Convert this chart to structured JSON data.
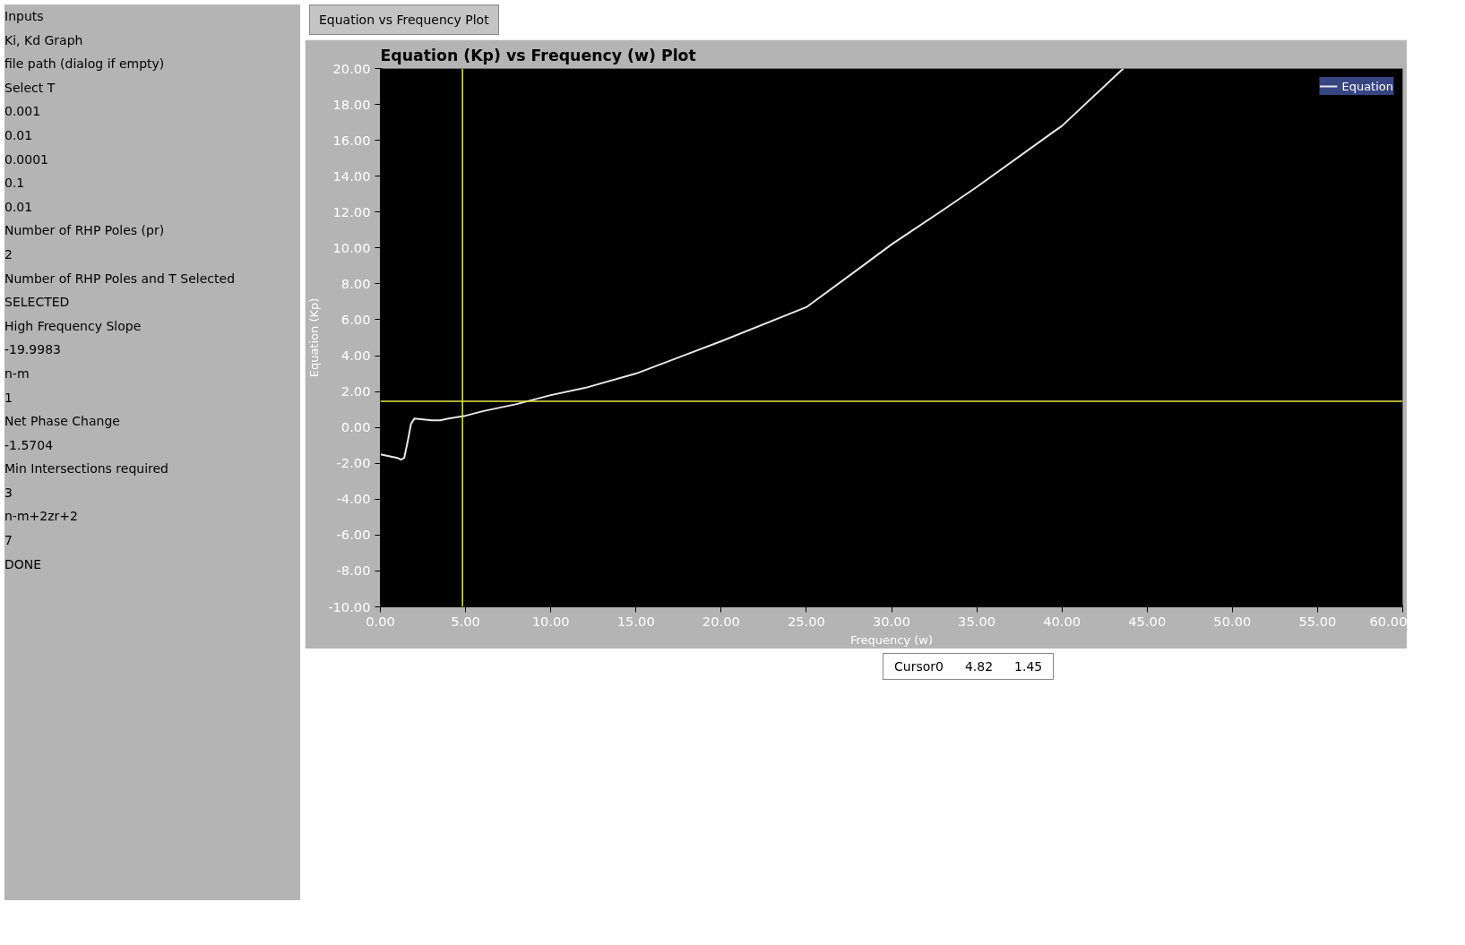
{
  "chart_data": {
    "type": "line",
    "title": "Equation (Kp) vs Frequency (w)  Plot",
    "subtitle": "Equation vs Frequency Plot",
    "xlabel": "Frequency (w)",
    "ylabel": "Equation (Kp)",
    "x": [
      0,
      0.5,
      1,
      1.2,
      1.4,
      1.6,
      1.8,
      2,
      2.5,
      3,
      3.5,
      4,
      5,
      6,
      8,
      10,
      12,
      15,
      20,
      25,
      28.3,
      30,
      33,
      35,
      39.4,
      40,
      43.6
    ],
    "series": [
      {
        "name": "Equation",
        "color": "#e8e8e8",
        "values": [
          -1.5,
          -1.6,
          -1.7,
          -1.8,
          -1.7,
          -0.8,
          0.2,
          0.5,
          0.45,
          0.4,
          0.4,
          0.5,
          0.65,
          0.9,
          1.3,
          1.8,
          2.2,
          3.0,
          4.8,
          6.7,
          9.0,
          10.2,
          12.1,
          13.4,
          16.4,
          16.8,
          20
        ]
      }
    ],
    "xlim": [
      0,
      60
    ],
    "ylim": [
      -10,
      20
    ],
    "xticks": [
      {
        "value": 0,
        "label": "0.00"
      },
      {
        "value": 5,
        "label": "5.00"
      },
      {
        "value": 10,
        "label": "10.00"
      },
      {
        "value": 15,
        "label": "15.00"
      },
      {
        "value": 20,
        "label": "20.00"
      },
      {
        "value": 25,
        "label": "25.00"
      },
      {
        "value": 30,
        "label": "30.00"
      },
      {
        "value": 35,
        "label": "35.00"
      },
      {
        "value": 40,
        "label": "40.00"
      },
      {
        "value": 45,
        "label": "45.00"
      },
      {
        "value": 50,
        "label": "50.00"
      },
      {
        "value": 55,
        "label": "55.00"
      },
      {
        "value": 60,
        "label": "60.00"
      }
    ],
    "yticks": [
      {
        "value": -10,
        "label": "-10.00"
      },
      {
        "value": -8,
        "label": "-8.00"
      },
      {
        "value": -6,
        "label": "-6.00"
      },
      {
        "value": -4,
        "label": "-4.00"
      },
      {
        "value": -2,
        "label": "-2.00"
      },
      {
        "value": 0,
        "label": "0.00"
      },
      {
        "value": 2,
        "label": "2.00"
      },
      {
        "value": 4,
        "label": "4.00"
      },
      {
        "value": 6,
        "label": "6.00"
      },
      {
        "value": 8,
        "label": "8.00"
      },
      {
        "value": 10,
        "label": "10.00"
      },
      {
        "value": 12,
        "label": "12.00"
      },
      {
        "value": 14,
        "label": "14.00"
      },
      {
        "value": 16,
        "label": "16.00"
      },
      {
        "value": 18,
        "label": "18.00"
      },
      {
        "value": 20,
        "label": "20.00"
      }
    ],
    "ref_lines": [
      {
        "axis": "x",
        "value": 4.82,
        "color": "#e6e64a"
      },
      {
        "axis": "y",
        "value": 1.45,
        "color": "#e6e64a"
      }
    ],
    "annotations": [
      "Cursor0",
      "4.82",
      "1.45",
      "Inputs",
      "Ki, Kd Graph",
      "file path (dialog if empty)",
      "Select T",
      "0.001",
      "0.01",
      "0.0001",
      "0.1",
      "0.01",
      "Number of RHP Poles (pr)",
      "2",
      "Number of RHP Poles and T Selected",
      "SELECTED",
      "High Frequency Slope",
      "-19.9983",
      "n-m",
      "1",
      "Net Phase Change",
      "-1.5704",
      "Min Intersections required",
      "3",
      "n-m+2zr+2",
      "7",
      "DONE"
    ],
    "grid": false,
    "legend": "top right",
    "marker": "none",
    "line_style": "solid"
  }
}
